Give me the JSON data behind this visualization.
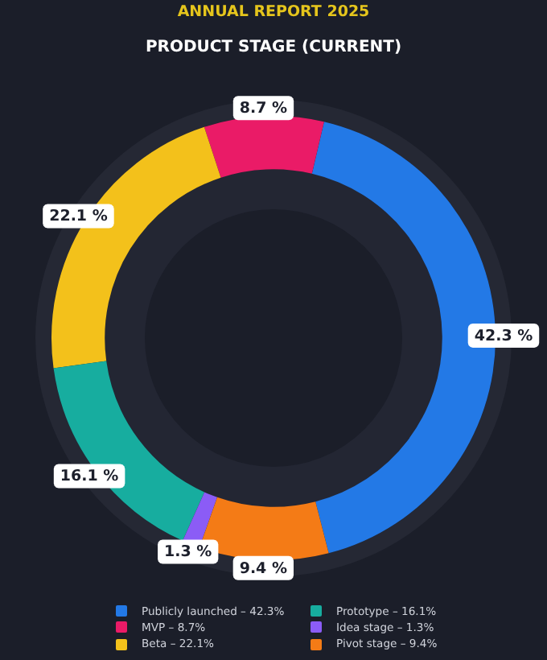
{
  "chart_data": {
    "type": "donut",
    "title": "ANNUAL REPORT 2025",
    "subtitle": "PRODUCT STAGE (CURRENT)",
    "categories": [
      "Publicly launched – 42.3%",
      "MVP – 8.7%",
      "Beta – 22.1%",
      "Prototype – 16.1%",
      "Idea stage – 1.3%",
      "Pivot stage – 9.4%"
    ],
    "values": [
      42.3,
      8.7,
      22.1,
      16.1,
      1.3,
      9.4
    ],
    "colors": [
      "#2379e6",
      "#ea1b67",
      "#f3c11b",
      "#17ad9f",
      "#8b5cf6",
      "#f47b16"
    ],
    "value_labels": [
      "42.3 %",
      "8.7 %",
      "22.1 %",
      "16.1 %",
      "1.3 %",
      "9.4 %"
    ],
    "legend": "bottom"
  }
}
